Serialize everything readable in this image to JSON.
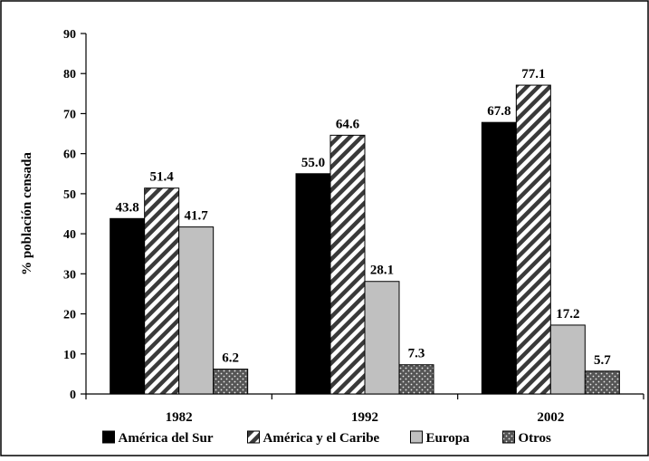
{
  "chart_data": {
    "type": "bar",
    "title": "",
    "xlabel": "",
    "ylabel": "% población censada",
    "ylim": [
      0,
      90
    ],
    "yticks": [
      0,
      10,
      20,
      30,
      40,
      50,
      60,
      70,
      80,
      90
    ],
    "categories": [
      "1982",
      "1992",
      "2002"
    ],
    "series": [
      {
        "name": "América del Sur",
        "values": [
          43.8,
          55.0,
          67.8
        ],
        "labels": [
          "43.8",
          "55.0",
          "67.8"
        ],
        "fill": "solid",
        "color": "#000000"
      },
      {
        "name": "América y el Caribe",
        "values": [
          51.4,
          64.6,
          77.1
        ],
        "labels": [
          "51.4",
          "64.6",
          "77.1"
        ],
        "fill": "diagonal",
        "color": "#3a3a3a"
      },
      {
        "name": "Europa",
        "values": [
          41.7,
          28.1,
          17.2
        ],
        "labels": [
          "41.7",
          "28.1",
          "17.2"
        ],
        "fill": "solid",
        "color": "#c0c0c0"
      },
      {
        "name": "Otros",
        "values": [
          6.2,
          7.3,
          5.7
        ],
        "labels": [
          "6.2",
          "7.3",
          "5.7"
        ],
        "fill": "dotted",
        "color": "#555555"
      }
    ],
    "grid": false,
    "legend": "bottom"
  }
}
